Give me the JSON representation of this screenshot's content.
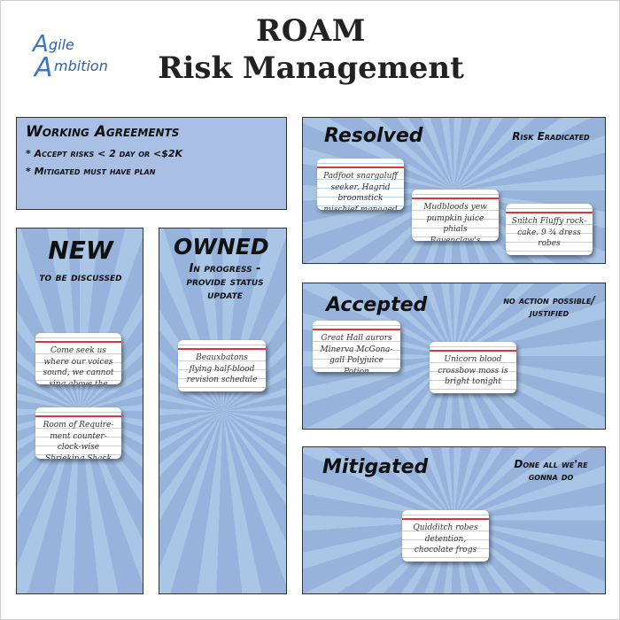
{
  "logo": {
    "line1": "gile",
    "line2": "mbition",
    "letter1": "A",
    "letter2": "A"
  },
  "title": {
    "line1": "ROAM",
    "line2": "Risk Management"
  },
  "working_agreements": {
    "heading": "Working Agreements",
    "items": [
      "* Accept risks < 2 day or <$2K",
      "* Mitigated must have plan"
    ]
  },
  "new": {
    "heading": "NEW",
    "subtitle": "to be discussed",
    "cards": [
      "Come seek us where our voices sound, we cannot sing above the ground",
      "Room of Require-ment counter-clock-wise Shrieking Shack"
    ]
  },
  "owned": {
    "heading": "OWNED",
    "subtitle": "In progress - provide status update",
    "cards": [
      "Beauxbatons flying half-blood revision schedule"
    ]
  },
  "resolved": {
    "heading": "Resolved",
    "note": "Risk Eradicated",
    "cards": [
      "Padfoot snargaluff seeker. Hagrid broomstick mischief managed",
      "Mudbloods yew pumpkin juice phials Ravenclaw's Diadem",
      "Snitch Fluffy rock-cake. 9 ¾ dress robes"
    ]
  },
  "accepted": {
    "heading": "Accepted",
    "note": "no action possible/ justified",
    "cards": [
      "Great Hall aurors Minerva McGona-gall Polyjuice Potion",
      "Unicorn blood crossbow moss is bright tonight"
    ]
  },
  "mitigated": {
    "heading": "Mitigated",
    "note": "Done all we're gonna do",
    "cards": [
      "Quidditch robes detention, chocolate frogs"
    ]
  },
  "colors": {
    "panel_blue": "#a9c6e6",
    "card_red_line": "#d9373c",
    "logo_blue": "#3b78c4"
  }
}
